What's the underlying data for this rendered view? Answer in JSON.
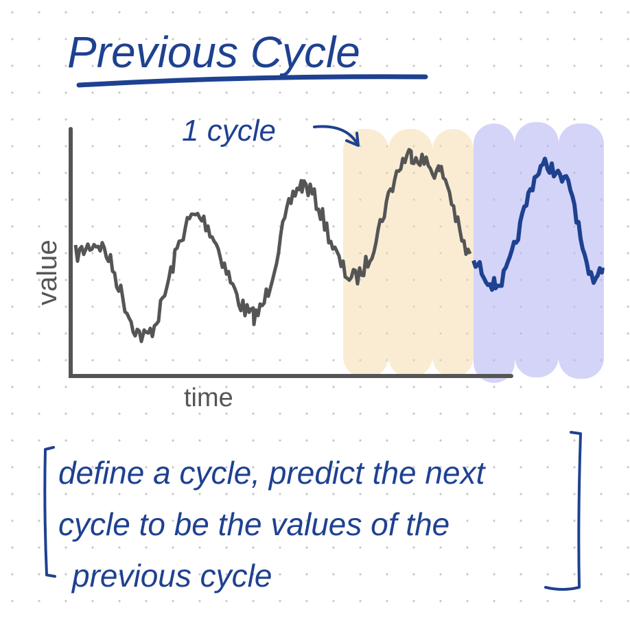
{
  "title": "Previous Cycle",
  "annotation": "1 cycle",
  "axes": {
    "y_label": "value",
    "x_label": "time"
  },
  "caption": {
    "lines": [
      "define a cycle, predict the next",
      "cycle to be the values of the",
      "previous cycle"
    ]
  }
}
